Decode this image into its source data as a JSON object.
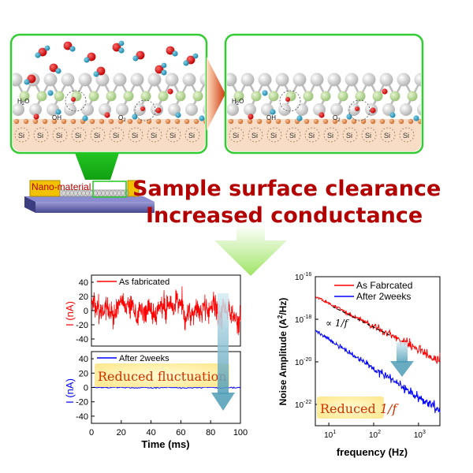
{
  "molecule_labels": {
    "water": "H2O",
    "water_base": "H",
    "water_sub": "2",
    "water_tail": "O",
    "hydroxyl": "OH",
    "oxygen": "O2",
    "oxygen_base": "O",
    "oxygen_sub": "2"
  },
  "substrate": {
    "si_label": "Si"
  },
  "device": {
    "label": "Nano-material"
  },
  "headline": {
    "line1": "Sample surface clearance",
    "line2": "Increased conductance"
  },
  "colors": {
    "panel_border": "#33cc33",
    "headline": "#b30000",
    "trace_as_fabricated": "#ff0000",
    "trace_after": "#0000ff",
    "arrow_teal": "#5aa5be",
    "electrode": "#f2c200",
    "substrate": "#5a5aa8",
    "callout_orange": "#cc3300"
  },
  "chart_data": [
    {
      "type": "line",
      "title": "",
      "xlabel": "Time (ms)",
      "xlim": [
        0,
        100
      ],
      "x_ticks": [
        "0",
        "20",
        "40",
        "60",
        "80",
        "100"
      ],
      "panels": [
        {
          "ylabel": "I (nA)",
          "ylim": [
            -50,
            50
          ],
          "y_ticks": [
            "40",
            "20",
            "0",
            "-20",
            "-40"
          ],
          "series": [
            {
              "name": "As fabricated",
              "color": "#ff0000",
              "amplitude_nA": 40,
              "mean_nA": 0
            }
          ]
        },
        {
          "ylabel": "I (nA)",
          "ylim": [
            -50,
            50
          ],
          "y_ticks": [
            "40",
            "20",
            "0",
            "-20",
            "-40"
          ],
          "series": [
            {
              "name": "After 2weeks",
              "color": "#0000ff",
              "amplitude_nA": 2,
              "mean_nA": 0
            }
          ]
        }
      ],
      "annotation": "Reduced fluctuation"
    },
    {
      "type": "line",
      "title": "",
      "xlabel": "frequency (Hz)",
      "ylabel_main": "Noise Amplitude (A",
      "ylabel_sup": "2",
      "ylabel_end": "/Hz)",
      "x_scale": "log",
      "y_scale": "log",
      "xlim": [
        5,
        3000
      ],
      "ylim": [
        1e-23,
        1e-16
      ],
      "x_tick_labels": [
        {
          "base": "10",
          "exp": "1",
          "value": 10
        },
        {
          "base": "10",
          "exp": "2",
          "value": 100
        },
        {
          "base": "10",
          "exp": "3",
          "value": 1000
        }
      ],
      "y_tick_labels": [
        {
          "base": "10",
          "exp": "-16",
          "value": 1e-16
        },
        {
          "base": "10",
          "exp": "-18",
          "value": 1e-18
        },
        {
          "base": "10",
          "exp": "-20",
          "value": 1e-20
        },
        {
          "base": "10",
          "exp": "-22",
          "value": 1e-22
        }
      ],
      "series": [
        {
          "name": "As Fabrcated",
          "color": "#ff0000",
          "points": [
            [
              5,
              1.2e-17
            ],
            [
              3000,
              1.2e-20
            ]
          ]
        },
        {
          "name": "After 2weeks",
          "color": "#0000ff",
          "points": [
            [
              5,
              3e-19
            ],
            [
              3000,
              5e-23
            ]
          ]
        }
      ],
      "guide_label": "∝ 1/f",
      "annotation_text": "Reduced ",
      "annotation_italic": "1/f"
    }
  ]
}
